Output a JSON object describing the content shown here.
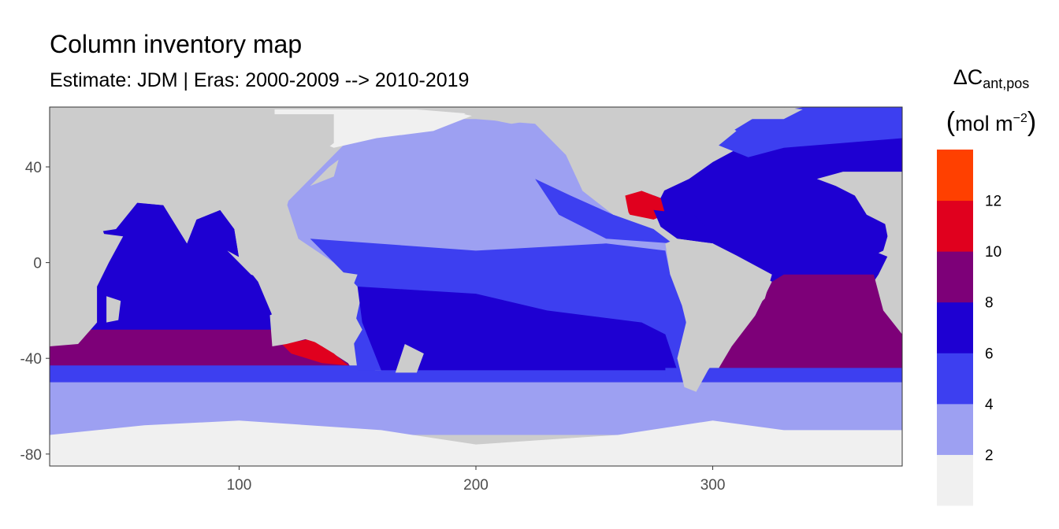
{
  "chart_data": {
    "type": "heatmap",
    "title": "Column inventory map",
    "subtitle": "Estimate: JDM  | Eras: 2000-2009 --> 2010-2019",
    "xlabel": "",
    "ylabel": "",
    "xlim": [
      20,
      380
    ],
    "ylim": [
      -85,
      65
    ],
    "x_ticks": [
      100,
      200,
      300
    ],
    "y_ticks": [
      40,
      0,
      -40,
      -80
    ],
    "grid": false,
    "legend": {
      "position": "right",
      "title_main": "ΔC",
      "title_sub": "ant,pos",
      "title_unit_prefix": "mol m",
      "title_unit_sup": "−2",
      "breaks": [
        "2",
        "4",
        "6",
        "8",
        "10",
        "12"
      ],
      "bins": [
        {
          "range": "<2",
          "color": "#f0f0f0"
        },
        {
          "range": "2-4",
          "color": "#9da0f2"
        },
        {
          "range": "4-6",
          "color": "#3d3ff0"
        },
        {
          "range": "6-8",
          "color": "#1e00d2"
        },
        {
          "range": "8-10",
          "color": "#7d0078"
        },
        {
          "range": "10-12",
          "color": "#e0001e"
        },
        {
          "range": ">12",
          "color": "#ff4000"
        }
      ]
    },
    "land_color": "#cccccc"
  }
}
